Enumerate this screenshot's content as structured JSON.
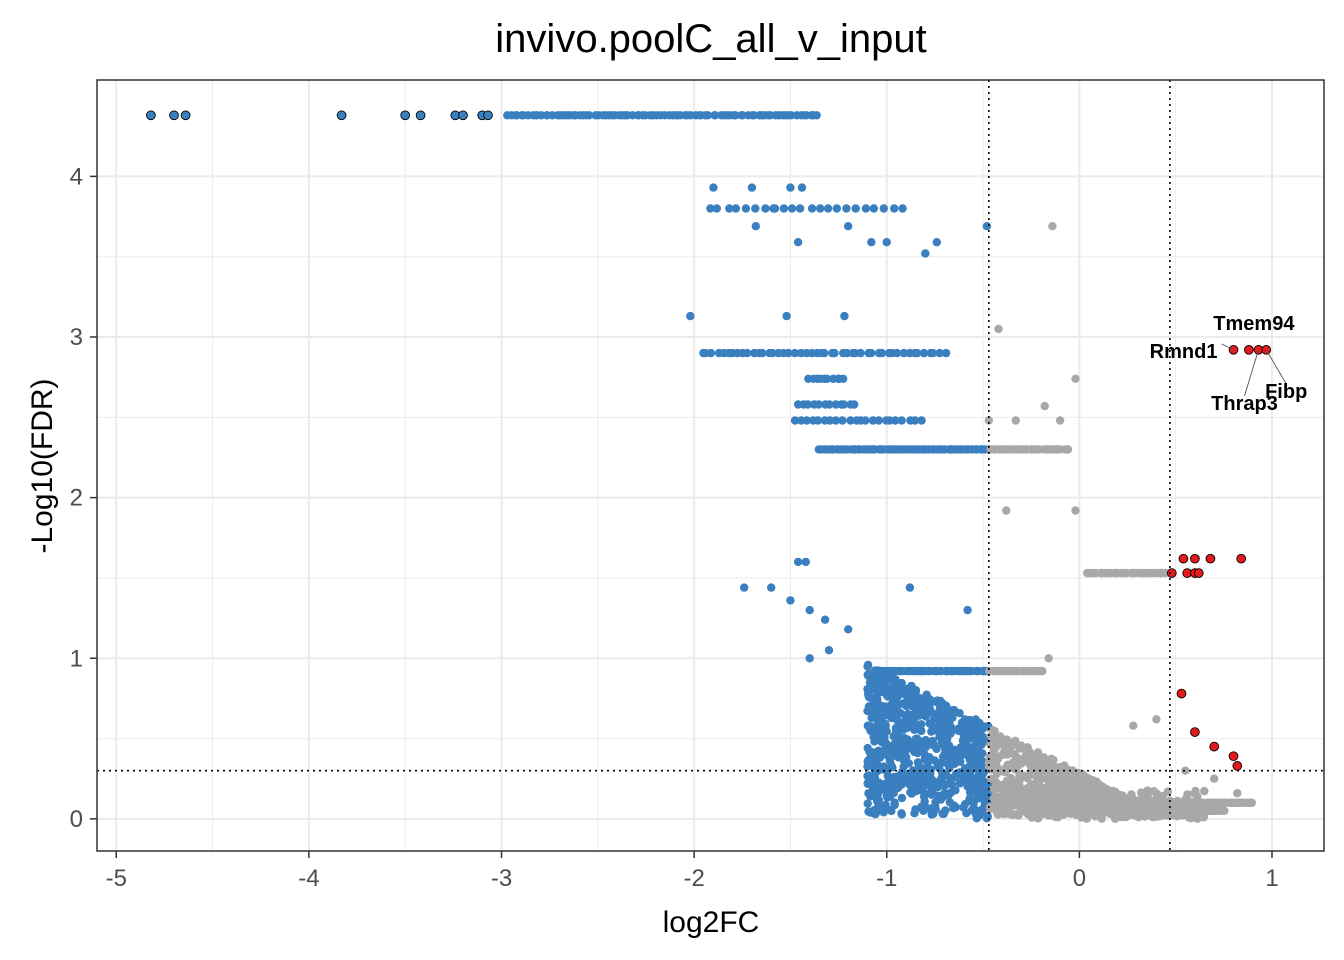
{
  "chart_data": {
    "type": "scatter",
    "title": "invivo.poolC_all_v_input",
    "xlabel": "log2FC",
    "ylabel": "-Log10(FDR)",
    "xlim": [
      -5.1,
      1.27
    ],
    "ylim": [
      -0.2,
      4.6
    ],
    "xticks": [
      -5,
      -4,
      -3,
      -2,
      -1,
      0,
      1
    ],
    "yticks": [
      0,
      1,
      2,
      3,
      4
    ],
    "grid": true,
    "thresholds": {
      "x": [
        -0.47,
        0.47
      ],
      "y": 0.3
    },
    "colors": {
      "down": "#3a7fbf",
      "ns": "#a8a8a8",
      "up": "#e41a1c",
      "outline": "#000000",
      "panel_border": "#333333",
      "grid": "#ebebeb"
    },
    "series": [
      {
        "class": "down-outlined",
        "points": [
          [
            -4.82,
            4.38
          ],
          [
            -4.7,
            4.38
          ],
          [
            -4.64,
            4.38
          ],
          [
            -3.83,
            4.38
          ],
          [
            -3.5,
            4.38
          ],
          [
            -3.42,
            4.38
          ],
          [
            -3.24,
            4.38
          ],
          [
            -3.2,
            4.38
          ],
          [
            -3.1,
            4.38
          ],
          [
            -3.07,
            4.38
          ]
        ]
      },
      {
        "class": "up",
        "points": [
          [
            0.8,
            2.92
          ],
          [
            0.88,
            2.92
          ],
          [
            0.93,
            2.92
          ],
          [
            0.97,
            2.92
          ],
          [
            0.54,
            1.62
          ],
          [
            0.6,
            1.62
          ],
          [
            0.68,
            1.62
          ],
          [
            0.84,
            1.62
          ],
          [
            0.48,
            1.53
          ],
          [
            0.56,
            1.53
          ],
          [
            0.6,
            1.53
          ],
          [
            0.62,
            1.53
          ],
          [
            0.53,
            0.78
          ],
          [
            0.6,
            0.54
          ],
          [
            0.7,
            0.45
          ],
          [
            0.8,
            0.39
          ],
          [
            0.82,
            0.33
          ]
        ]
      },
      {
        "class": "ns-extra",
        "points": [
          [
            -0.14,
            3.69
          ],
          [
            -0.42,
            3.05
          ],
          [
            -0.02,
            2.74
          ],
          [
            -0.18,
            2.57
          ],
          [
            -0.1,
            2.48
          ],
          [
            -0.33,
            2.48
          ],
          [
            -0.47,
            2.48
          ],
          [
            -0.38,
            1.92
          ],
          [
            -0.02,
            1.92
          ],
          [
            -0.16,
            1.0
          ],
          [
            0.4,
            0.62
          ],
          [
            0.28,
            0.58
          ],
          [
            0.55,
            0.3
          ],
          [
            0.7,
            0.25
          ],
          [
            0.82,
            0.16
          ]
        ]
      },
      {
        "class": "down-extra",
        "points": [
          [
            -2.02,
            3.13
          ],
          [
            -1.9,
            3.93
          ],
          [
            -1.7,
            3.93
          ],
          [
            -1.58,
            3.8
          ],
          [
            -1.5,
            3.93
          ],
          [
            -1.44,
            3.93
          ],
          [
            -1.2,
            3.69
          ],
          [
            -1.08,
            3.59
          ],
          [
            -1.0,
            3.59
          ],
          [
            -0.8,
            3.52
          ],
          [
            -0.74,
            3.59
          ],
          [
            -0.48,
            3.69
          ],
          [
            -1.68,
            3.69
          ],
          [
            -1.46,
            3.59
          ],
          [
            -1.22,
            3.13
          ],
          [
            -1.52,
            3.13
          ],
          [
            -1.46,
            1.6
          ],
          [
            -1.42,
            1.6
          ],
          [
            -1.74,
            1.44
          ],
          [
            -1.6,
            1.44
          ],
          [
            -1.5,
            1.36
          ],
          [
            -1.4,
            1.3
          ],
          [
            -1.32,
            1.24
          ],
          [
            -1.2,
            1.18
          ],
          [
            -1.3,
            1.05
          ],
          [
            -1.4,
            1.0
          ],
          [
            -0.58,
            1.3
          ],
          [
            -0.88,
            1.44
          ]
        ]
      }
    ],
    "labels": [
      {
        "text": "Tmem94",
        "x": 0.88,
        "y": 2.92
      },
      {
        "text": "Rmnd1",
        "x": 0.8,
        "y": 2.92
      },
      {
        "text": "Thrap3",
        "x": 0.93,
        "y": 2.92
      },
      {
        "text": "Fibp",
        "x": 0.97,
        "y": 2.92
      }
    ]
  }
}
